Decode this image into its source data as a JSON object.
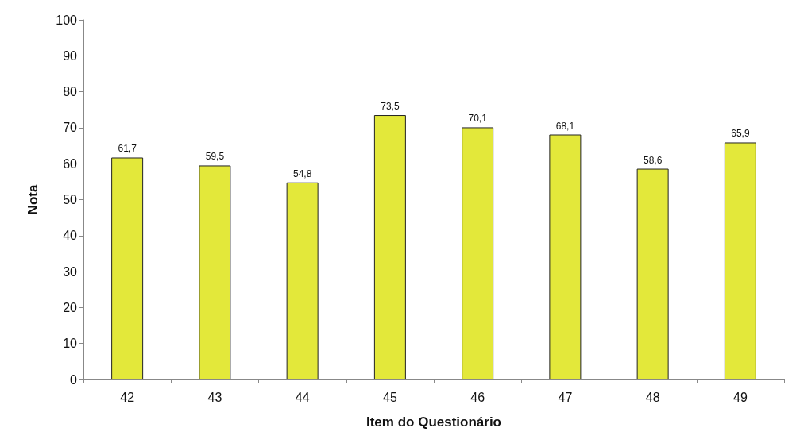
{
  "chart_data": {
    "type": "bar",
    "xlabel": "Item do Questionário",
    "ylabel": "Nota",
    "categories": [
      "42",
      "43",
      "44",
      "45",
      "46",
      "47",
      "48",
      "49"
    ],
    "values": [
      61.7,
      59.5,
      54.8,
      73.5,
      70.1,
      68.1,
      58.6,
      65.9
    ],
    "value_labels": [
      "61,7",
      "59,5",
      "54,8",
      "73,5",
      "70,1",
      "68,1",
      "58,6",
      "65,9"
    ],
    "color": "#e3e83a",
    "ylim": [
      0,
      100
    ],
    "yticks": [
      0,
      10,
      20,
      30,
      40,
      50,
      60,
      70,
      80,
      90,
      100
    ],
    "grid": false
  }
}
